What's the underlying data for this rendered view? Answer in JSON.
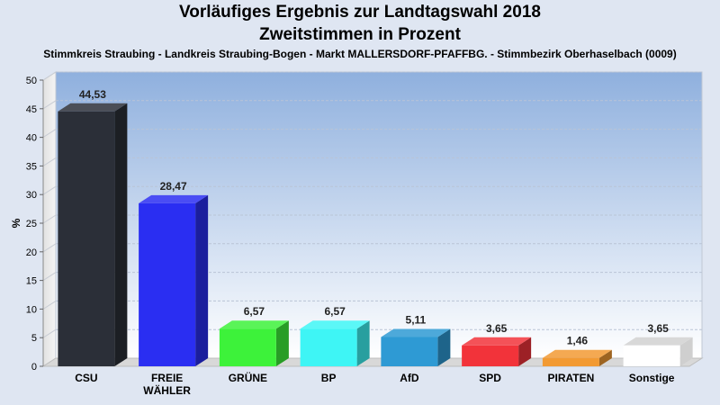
{
  "header": {
    "title": "Vorläufiges Ergebnis zur Landtagswahl 2018",
    "subtitle": "Zweitstimmen in Prozent",
    "location": "Stimmkreis Straubing - Landkreis Straubing-Bogen - Markt MALLERSDORF-PFAFFBG. - Stimmbezirk Oberhaselbach (0009)"
  },
  "chart_data": {
    "type": "bar",
    "title": "Vorläufiges Ergebnis zur Landtagswahl 2018",
    "subtitle": "Zweitstimmen in Prozent",
    "ylabel": "%",
    "ylim": [
      0,
      50
    ],
    "yticks": [
      0,
      5,
      10,
      15,
      20,
      25,
      30,
      35,
      40,
      45,
      50
    ],
    "grid": true,
    "categories": [
      [
        "CSU"
      ],
      [
        "FREIE",
        "WÄHLER"
      ],
      [
        "GRÜNE"
      ],
      [
        "BP"
      ],
      [
        "AfD"
      ],
      [
        "SPD"
      ],
      [
        "PIRATEN"
      ],
      [
        "Sonstige"
      ]
    ],
    "values": [
      44.53,
      28.47,
      6.57,
      6.57,
      5.11,
      3.65,
      1.46,
      3.65
    ],
    "value_labels": [
      "44,53",
      "28,47",
      "6,57",
      "6,57",
      "5,11",
      "3,65",
      "1,46",
      "3,65"
    ],
    "colors": [
      "#2b2f38",
      "#2a2ef2",
      "#3df23a",
      "#3ef5f5",
      "#2e9ad4",
      "#f2333a",
      "#f29a33",
      "#ffffff"
    ]
  }
}
